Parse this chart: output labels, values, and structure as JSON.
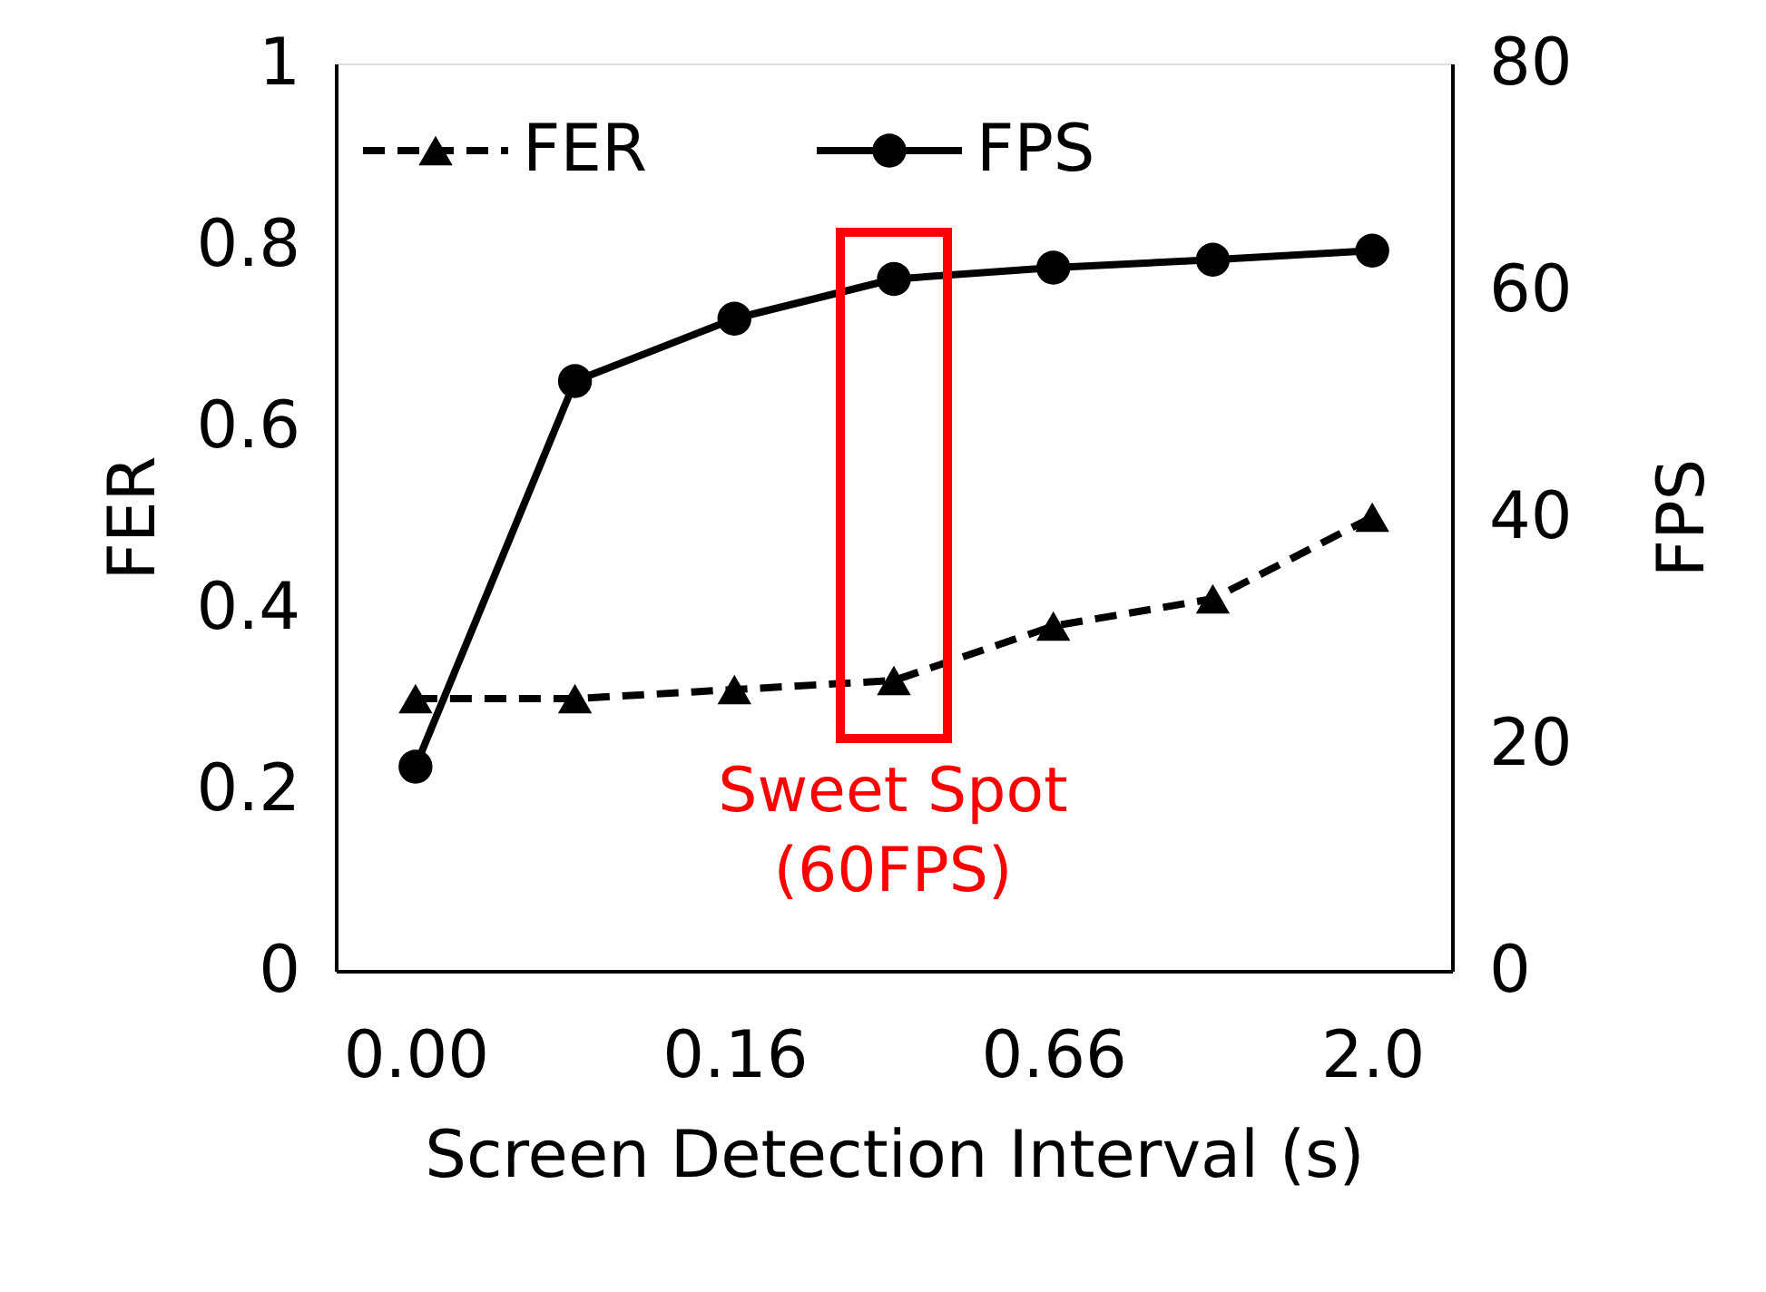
{
  "chart_data": {
    "type": "line",
    "xlabel": "Screen Detection Interval (s)",
    "ylabel": "FER",
    "y2label": "FPS",
    "categories": [
      "0.00",
      null,
      "0.16",
      null,
      "0.66",
      null,
      "2.0"
    ],
    "series": [
      {
        "name": "FER",
        "color": "#000000",
        "values": [
          0.3,
          0.3,
          0.31,
          0.32,
          0.38,
          0.41,
          0.5
        ],
        "marker": "triangle",
        "line_style": "dashed"
      },
      {
        "name": "FPS",
        "color": "#000000",
        "values": [
          18,
          52,
          57.5,
          61,
          62,
          62.7,
          63.5
        ],
        "marker": "circle",
        "line_style": "solid",
        "axis": "y2"
      }
    ],
    "ylim": [
      0,
      1
    ],
    "yticks": [
      0,
      0.2,
      0.4,
      0.6,
      0.8,
      1
    ],
    "y2lim": [
      0,
      80
    ],
    "y2ticks": [
      0,
      20,
      40,
      60,
      80
    ],
    "grid": false,
    "legend": "top left",
    "annotations": [
      "Sweet Spot\n(60FPS)"
    ]
  }
}
